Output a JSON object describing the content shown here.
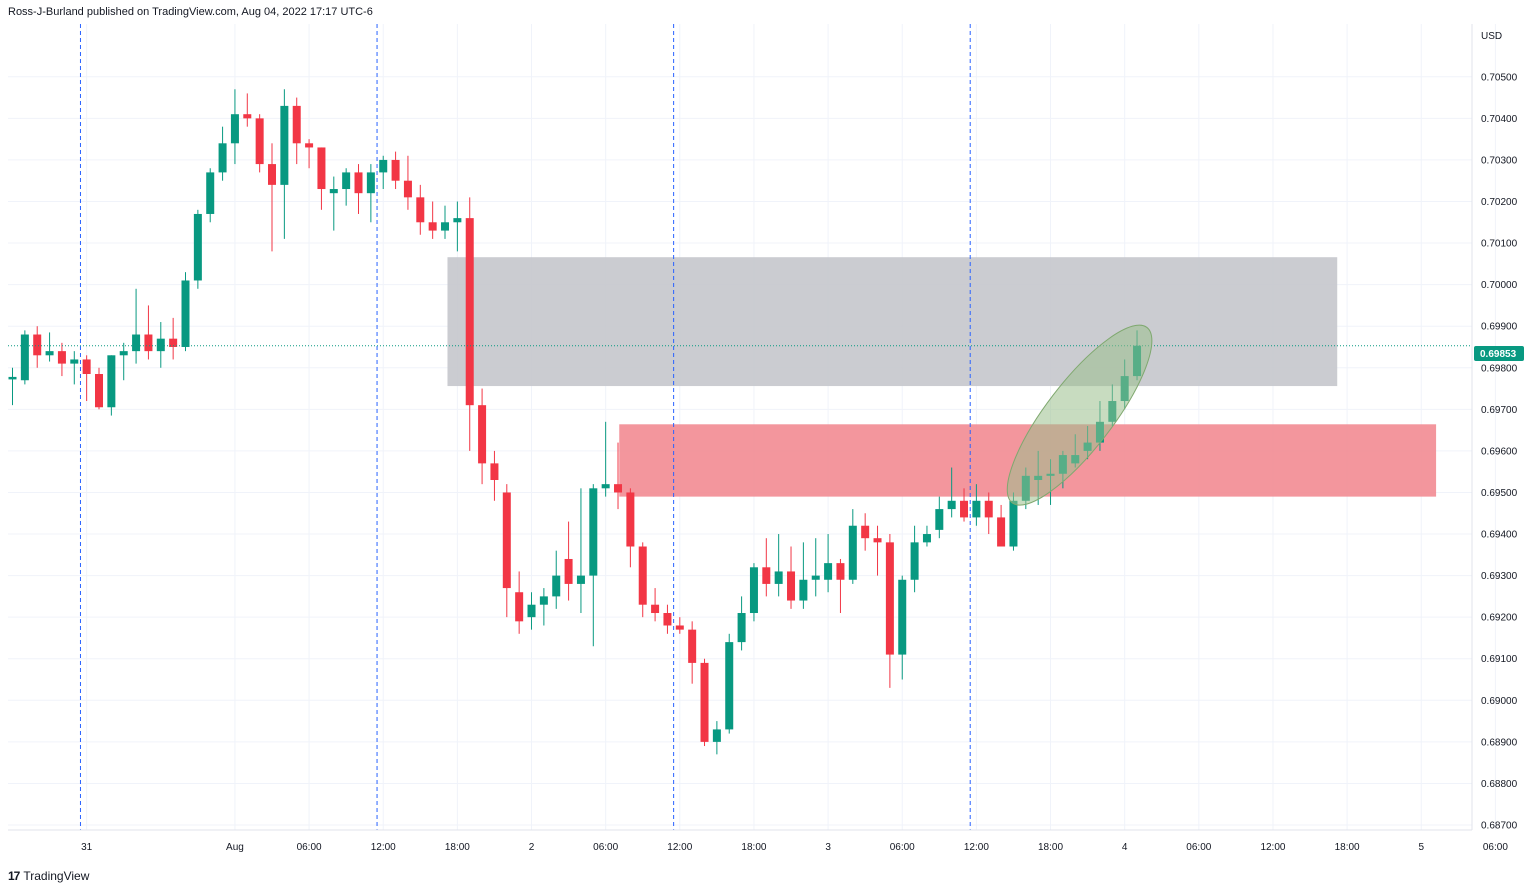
{
  "header": {
    "text": "Ross-J-Burland published on TradingView.com, Aug 04, 2022 17:17 UTC-6"
  },
  "footer": {
    "logo": "17",
    "brand": "TradingView"
  },
  "chart_data": {
    "type": "candlestick",
    "currency_label": "USD",
    "current_price": "0.69853",
    "y_ticks": [
      "0.70500",
      "0.70400",
      "0.70300",
      "0.70200",
      "0.70100",
      "0.70000",
      "0.69900",
      "0.69800",
      "0.69700",
      "0.69600",
      "0.69500",
      "0.69400",
      "0.69300",
      "0.69200",
      "0.69100",
      "0.69000",
      "0.68900",
      "0.68800",
      "0.68700"
    ],
    "ylim": [
      0.68688,
      0.70627
    ],
    "x_ticks": [
      {
        "label": "31",
        "t": 6
      },
      {
        "label": "Aug",
        "t": 18
      },
      {
        "label": "06:00",
        "t": 24
      },
      {
        "label": "12:00",
        "t": 30
      },
      {
        "label": "18:00",
        "t": 36
      },
      {
        "label": "2",
        "t": 42
      },
      {
        "label": "06:00",
        "t": 48
      },
      {
        "label": "12:00",
        "t": 54
      },
      {
        "label": "18:00",
        "t": 60
      },
      {
        "label": "3",
        "t": 66
      },
      {
        "label": "06:00",
        "t": 72
      },
      {
        "label": "12:00",
        "t": 78
      },
      {
        "label": "18:00",
        "t": 84
      },
      {
        "label": "4",
        "t": 90
      },
      {
        "label": "06:00",
        "t": 96
      },
      {
        "label": "12:00",
        "t": 102
      },
      {
        "label": "18:00",
        "t": 108
      },
      {
        "label": "5",
        "t": 114
      },
      {
        "label": "06:00",
        "t": 120
      }
    ],
    "session_lines_t": [
      5.5,
      29.5,
      53.5,
      77.5
    ],
    "zones": [
      {
        "name": "grey-zone",
        "t_start": 35.2,
        "t_end": 107.2,
        "price_top": 0.70066,
        "price_bottom": 0.69756,
        "color": "#c5c6cc"
      },
      {
        "name": "red-zone",
        "t_start": 49.1,
        "t_end": 115.2,
        "price_top": 0.69664,
        "price_bottom": 0.6949,
        "color": "#f28b92"
      }
    ],
    "highlight_ellipse": {
      "t1": 80.9,
      "p1": 0.69475,
      "t2": 91.8,
      "p2": 0.69897,
      "color": "#9bbf8d"
    },
    "candles": [
      {
        "t": 0,
        "o": 0.69772,
        "h": 0.698,
        "l": 0.6971,
        "c": 0.69778
      },
      {
        "t": 1,
        "o": 0.6977,
        "h": 0.6989,
        "l": 0.6976,
        "c": 0.6988
      },
      {
        "t": 2,
        "o": 0.6988,
        "h": 0.699,
        "l": 0.698,
        "c": 0.6983
      },
      {
        "t": 3,
        "o": 0.6983,
        "h": 0.69885,
        "l": 0.69815,
        "c": 0.6984
      },
      {
        "t": 4,
        "o": 0.6984,
        "h": 0.6986,
        "l": 0.6978,
        "c": 0.6981
      },
      {
        "t": 5,
        "o": 0.6981,
        "h": 0.6984,
        "l": 0.6976,
        "c": 0.6982
      },
      {
        "t": 6,
        "o": 0.6982,
        "h": 0.6983,
        "l": 0.6972,
        "c": 0.69785
      },
      {
        "t": 7,
        "o": 0.69785,
        "h": 0.698,
        "l": 0.697,
        "c": 0.69705
      },
      {
        "t": 8,
        "o": 0.69705,
        "h": 0.6983,
        "l": 0.69685,
        "c": 0.6983
      },
      {
        "t": 9,
        "o": 0.6983,
        "h": 0.6986,
        "l": 0.6977,
        "c": 0.6984
      },
      {
        "t": 10,
        "o": 0.6984,
        "h": 0.6999,
        "l": 0.6981,
        "c": 0.6988
      },
      {
        "t": 11,
        "o": 0.6988,
        "h": 0.6995,
        "l": 0.6982,
        "c": 0.6984
      },
      {
        "t": 12,
        "o": 0.6984,
        "h": 0.6991,
        "l": 0.698,
        "c": 0.6987
      },
      {
        "t": 13,
        "o": 0.6987,
        "h": 0.6992,
        "l": 0.6982,
        "c": 0.6985
      },
      {
        "t": 14,
        "o": 0.6985,
        "h": 0.7003,
        "l": 0.6984,
        "c": 0.7001
      },
      {
        "t": 15,
        "o": 0.7001,
        "h": 0.7018,
        "l": 0.6999,
        "c": 0.7017
      },
      {
        "t": 16,
        "o": 0.7017,
        "h": 0.7028,
        "l": 0.7015,
        "c": 0.7027
      },
      {
        "t": 17,
        "o": 0.7027,
        "h": 0.7038,
        "l": 0.7025,
        "c": 0.7034
      },
      {
        "t": 18,
        "o": 0.7034,
        "h": 0.7047,
        "l": 0.7029,
        "c": 0.7041
      },
      {
        "t": 19,
        "o": 0.7041,
        "h": 0.7046,
        "l": 0.7038,
        "c": 0.704
      },
      {
        "t": 20,
        "o": 0.704,
        "h": 0.7041,
        "l": 0.7027,
        "c": 0.7029
      },
      {
        "t": 21,
        "o": 0.7029,
        "h": 0.7034,
        "l": 0.7008,
        "c": 0.7024
      },
      {
        "t": 22,
        "o": 0.7024,
        "h": 0.7047,
        "l": 0.7011,
        "c": 0.7043
      },
      {
        "t": 23,
        "o": 0.7043,
        "h": 0.7045,
        "l": 0.7029,
        "c": 0.7034
      },
      {
        "t": 24,
        "o": 0.7034,
        "h": 0.7035,
        "l": 0.7028,
        "c": 0.7033
      },
      {
        "t": 25,
        "o": 0.7033,
        "h": 0.7033,
        "l": 0.7018,
        "c": 0.7023
      },
      {
        "t": 26,
        "o": 0.7022,
        "h": 0.7026,
        "l": 0.7013,
        "c": 0.7023
      },
      {
        "t": 27,
        "o": 0.7023,
        "h": 0.7028,
        "l": 0.7019,
        "c": 0.7027
      },
      {
        "t": 28,
        "o": 0.7027,
        "h": 0.7029,
        "l": 0.7017,
        "c": 0.7022
      },
      {
        "t": 29,
        "o": 0.7022,
        "h": 0.7029,
        "l": 0.7015,
        "c": 0.7027
      },
      {
        "t": 30,
        "o": 0.7027,
        "h": 0.7031,
        "l": 0.7023,
        "c": 0.703
      },
      {
        "t": 31,
        "o": 0.703,
        "h": 0.7032,
        "l": 0.7023,
        "c": 0.7025
      },
      {
        "t": 32,
        "o": 0.7025,
        "h": 0.7031,
        "l": 0.7018,
        "c": 0.7021
      },
      {
        "t": 33,
        "o": 0.7021,
        "h": 0.7024,
        "l": 0.7012,
        "c": 0.7015
      },
      {
        "t": 34,
        "o": 0.7015,
        "h": 0.702,
        "l": 0.7011,
        "c": 0.7013
      },
      {
        "t": 35,
        "o": 0.7013,
        "h": 0.7019,
        "l": 0.7011,
        "c": 0.7015
      },
      {
        "t": 36,
        "o": 0.7015,
        "h": 0.702,
        "l": 0.7008,
        "c": 0.7016
      },
      {
        "t": 37,
        "o": 0.7016,
        "h": 0.7021,
        "l": 0.696,
        "c": 0.6971
      },
      {
        "t": 38,
        "o": 0.6971,
        "h": 0.6975,
        "l": 0.6952,
        "c": 0.6957
      },
      {
        "t": 39,
        "o": 0.6957,
        "h": 0.696,
        "l": 0.6948,
        "c": 0.6953
      },
      {
        "t": 40,
        "o": 0.695,
        "h": 0.6952,
        "l": 0.692,
        "c": 0.6927
      },
      {
        "t": 41,
        "o": 0.6926,
        "h": 0.6931,
        "l": 0.6916,
        "c": 0.6919
      },
      {
        "t": 42,
        "o": 0.692,
        "h": 0.6926,
        "l": 0.6917,
        "c": 0.6923
      },
      {
        "t": 43,
        "o": 0.6923,
        "h": 0.6927,
        "l": 0.6918,
        "c": 0.6925
      },
      {
        "t": 44,
        "o": 0.6925,
        "h": 0.6936,
        "l": 0.6922,
        "c": 0.693
      },
      {
        "t": 45,
        "o": 0.6934,
        "h": 0.6943,
        "l": 0.6924,
        "c": 0.6928
      },
      {
        "t": 46,
        "o": 0.6928,
        "h": 0.6951,
        "l": 0.6921,
        "c": 0.693
      },
      {
        "t": 47,
        "o": 0.693,
        "h": 0.6952,
        "l": 0.6913,
        "c": 0.6951
      },
      {
        "t": 48,
        "o": 0.6951,
        "h": 0.6967,
        "l": 0.6949,
        "c": 0.6952
      },
      {
        "t": 49,
        "o": 0.6952,
        "h": 0.6962,
        "l": 0.6946,
        "c": 0.695
      },
      {
        "t": 50,
        "o": 0.695,
        "h": 0.6951,
        "l": 0.6932,
        "c": 0.6937
      },
      {
        "t": 51,
        "o": 0.6937,
        "h": 0.6938,
        "l": 0.692,
        "c": 0.6923
      },
      {
        "t": 52,
        "o": 0.6923,
        "h": 0.6927,
        "l": 0.6919,
        "c": 0.6921
      },
      {
        "t": 53,
        "o": 0.6921,
        "h": 0.6923,
        "l": 0.6916,
        "c": 0.6918
      },
      {
        "t": 54,
        "o": 0.6918,
        "h": 0.692,
        "l": 0.6916,
        "c": 0.6917
      },
      {
        "t": 55,
        "o": 0.6917,
        "h": 0.6919,
        "l": 0.6904,
        "c": 0.6909
      },
      {
        "t": 56,
        "o": 0.6909,
        "h": 0.691,
        "l": 0.6889,
        "c": 0.689
      },
      {
        "t": 57,
        "o": 0.689,
        "h": 0.6895,
        "l": 0.6887,
        "c": 0.6893
      },
      {
        "t": 58,
        "o": 0.6893,
        "h": 0.6916,
        "l": 0.6892,
        "c": 0.6914
      },
      {
        "t": 59,
        "o": 0.6914,
        "h": 0.6925,
        "l": 0.6912,
        "c": 0.6921
      },
      {
        "t": 60,
        "o": 0.6921,
        "h": 0.6933,
        "l": 0.6919,
        "c": 0.6932
      },
      {
        "t": 61,
        "o": 0.6932,
        "h": 0.6939,
        "l": 0.6925,
        "c": 0.6928
      },
      {
        "t": 62,
        "o": 0.6928,
        "h": 0.694,
        "l": 0.6925,
        "c": 0.6931
      },
      {
        "t": 63,
        "o": 0.6931,
        "h": 0.6937,
        "l": 0.6922,
        "c": 0.6924
      },
      {
        "t": 64,
        "o": 0.6924,
        "h": 0.6938,
        "l": 0.6922,
        "c": 0.6929
      },
      {
        "t": 65,
        "o": 0.6929,
        "h": 0.6939,
        "l": 0.6925,
        "c": 0.693
      },
      {
        "t": 66,
        "o": 0.6929,
        "h": 0.694,
        "l": 0.6926,
        "c": 0.6933
      },
      {
        "t": 67,
        "o": 0.6933,
        "h": 0.6934,
        "l": 0.6921,
        "c": 0.6929
      },
      {
        "t": 68,
        "o": 0.6929,
        "h": 0.6946,
        "l": 0.6928,
        "c": 0.6942
      },
      {
        "t": 69,
        "o": 0.6942,
        "h": 0.6945,
        "l": 0.6936,
        "c": 0.6939
      },
      {
        "t": 70,
        "o": 0.6939,
        "h": 0.6942,
        "l": 0.693,
        "c": 0.6938
      },
      {
        "t": 71,
        "o": 0.6938,
        "h": 0.694,
        "l": 0.6903,
        "c": 0.6911
      },
      {
        "t": 72,
        "o": 0.6911,
        "h": 0.693,
        "l": 0.6905,
        "c": 0.6929
      },
      {
        "t": 73,
        "o": 0.6929,
        "h": 0.6942,
        "l": 0.6926,
        "c": 0.6938
      },
      {
        "t": 74,
        "o": 0.6938,
        "h": 0.6942,
        "l": 0.6937,
        "c": 0.694
      },
      {
        "t": 75,
        "o": 0.6941,
        "h": 0.6949,
        "l": 0.6939,
        "c": 0.6946
      },
      {
        "t": 76,
        "o": 0.6946,
        "h": 0.6956,
        "l": 0.6944,
        "c": 0.6948
      },
      {
        "t": 77,
        "o": 0.6948,
        "h": 0.6951,
        "l": 0.6943,
        "c": 0.6944
      },
      {
        "t": 78,
        "o": 0.6944,
        "h": 0.6952,
        "l": 0.6942,
        "c": 0.6948
      },
      {
        "t": 79,
        "o": 0.6948,
        "h": 0.695,
        "l": 0.694,
        "c": 0.6944
      },
      {
        "t": 80,
        "o": 0.6944,
        "h": 0.6947,
        "l": 0.6937,
        "c": 0.6937
      },
      {
        "t": 81,
        "o": 0.6937,
        "h": 0.695,
        "l": 0.6936,
        "c": 0.6948
      },
      {
        "t": 82,
        "o": 0.6948,
        "h": 0.6956,
        "l": 0.6946,
        "c": 0.6954
      },
      {
        "t": 83,
        "o": 0.6953,
        "h": 0.696,
        "l": 0.6947,
        "c": 0.6954
      },
      {
        "t": 84,
        "o": 0.6954,
        "h": 0.6958,
        "l": 0.6947,
        "c": 0.69545
      },
      {
        "t": 85,
        "o": 0.69545,
        "h": 0.696,
        "l": 0.6951,
        "c": 0.6959
      },
      {
        "t": 86,
        "o": 0.6957,
        "h": 0.6964,
        "l": 0.6956,
        "c": 0.6959
      },
      {
        "t": 87,
        "o": 0.696,
        "h": 0.6966,
        "l": 0.6958,
        "c": 0.6962
      },
      {
        "t": 88,
        "o": 0.6962,
        "h": 0.6972,
        "l": 0.696,
        "c": 0.6967
      },
      {
        "t": 89,
        "o": 0.6967,
        "h": 0.6976,
        "l": 0.6966,
        "c": 0.6972
      },
      {
        "t": 90,
        "o": 0.6972,
        "h": 0.6982,
        "l": 0.697,
        "c": 0.6978
      },
      {
        "t": 91,
        "o": 0.6978,
        "h": 0.6989,
        "l": 0.6977,
        "c": 0.69853
      }
    ]
  }
}
